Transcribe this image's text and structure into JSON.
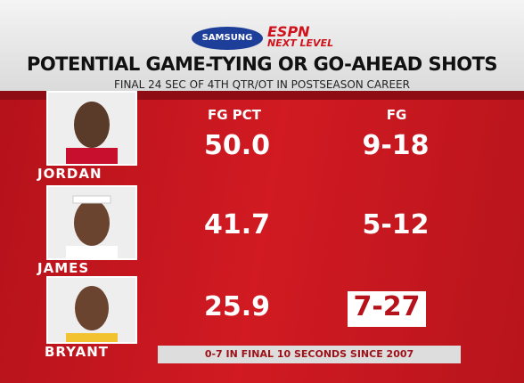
{
  "header": {
    "sponsor": "SAMSUNG",
    "network": "ESPN",
    "brand": "NEXT LEVEL",
    "title": "POTENTIAL GAME-TYING OR GO-AHEAD SHOTS",
    "subtitle": "FINAL 24 SEC OF 4TH QTR/OT IN POSTSEASON CAREER"
  },
  "table": {
    "columns": [
      "FG PCT",
      "FG"
    ],
    "rows": [
      {
        "player": "JORDAN",
        "fg_pct": "50.0",
        "fg": "9-18"
      },
      {
        "player": "JAMES",
        "fg_pct": "41.7",
        "fg": "5-12"
      },
      {
        "player": "BRYANT",
        "fg_pct": "25.9",
        "fg": "7-27"
      }
    ]
  },
  "footnote": "0-7 IN FINAL 10 SECONDS SINCE 2007"
}
